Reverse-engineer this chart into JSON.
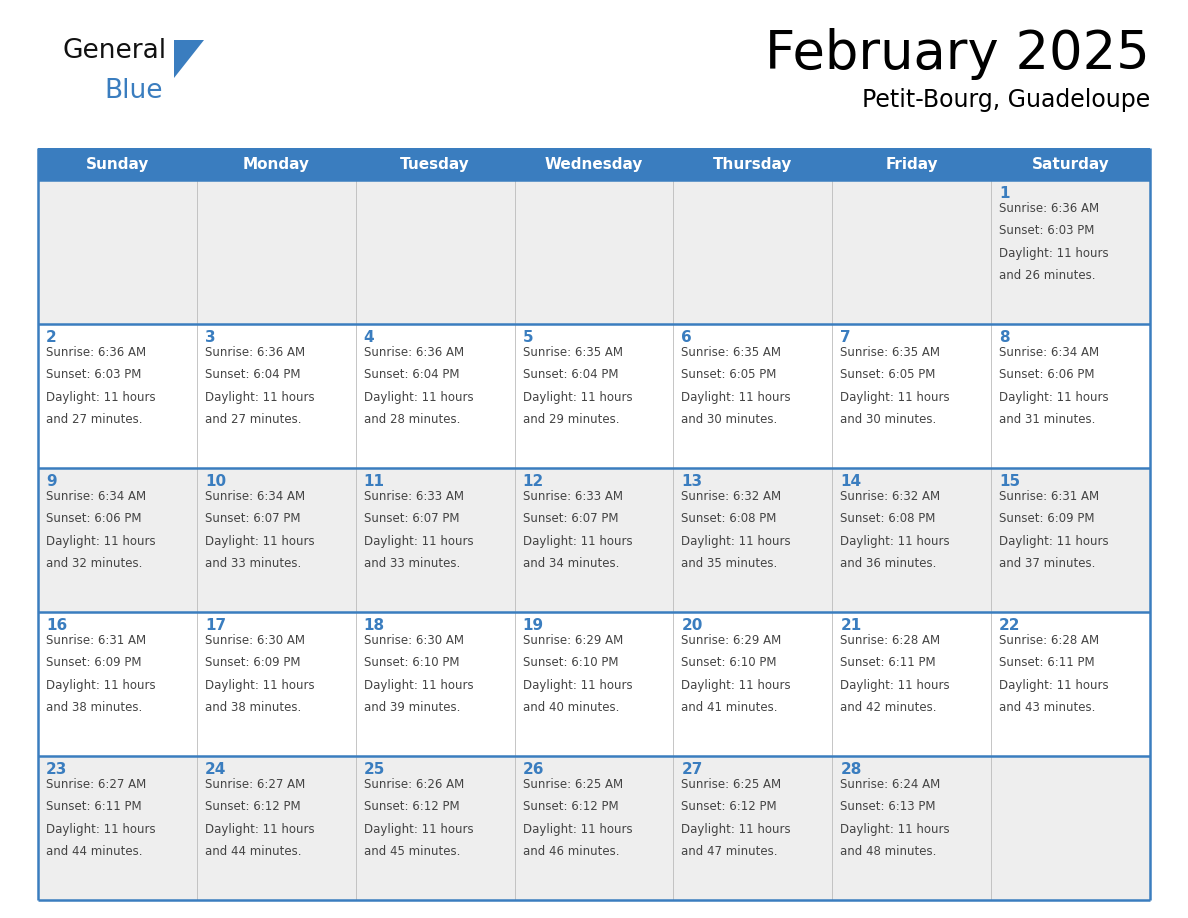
{
  "title": "February 2025",
  "subtitle": "Petit-Bourg, Guadeloupe",
  "days_of_week": [
    "Sunday",
    "Monday",
    "Tuesday",
    "Wednesday",
    "Thursday",
    "Friday",
    "Saturday"
  ],
  "header_bg": "#3a7dbf",
  "header_text": "#ffffff",
  "row_bg_odd": "#eeeeee",
  "row_bg_even": "#ffffff",
  "date_color": "#3a7dbf",
  "info_color": "#444444",
  "line_color": "#3a7dbf",
  "logo_general_color": "#111111",
  "logo_blue_color": "#3a7dbf",
  "calendar_data": [
    [
      {
        "date": "",
        "sunrise": "",
        "sunset": "",
        "daylight": ""
      },
      {
        "date": "",
        "sunrise": "",
        "sunset": "",
        "daylight": ""
      },
      {
        "date": "",
        "sunrise": "",
        "sunset": "",
        "daylight": ""
      },
      {
        "date": "",
        "sunrise": "",
        "sunset": "",
        "daylight": ""
      },
      {
        "date": "",
        "sunrise": "",
        "sunset": "",
        "daylight": ""
      },
      {
        "date": "",
        "sunrise": "",
        "sunset": "",
        "daylight": ""
      },
      {
        "date": "1",
        "sunrise": "6:36 AM",
        "sunset": "6:03 PM",
        "daylight": "11 hours and 26 minutes."
      }
    ],
    [
      {
        "date": "2",
        "sunrise": "6:36 AM",
        "sunset": "6:03 PM",
        "daylight": "11 hours and 27 minutes."
      },
      {
        "date": "3",
        "sunrise": "6:36 AM",
        "sunset": "6:04 PM",
        "daylight": "11 hours and 27 minutes."
      },
      {
        "date": "4",
        "sunrise": "6:36 AM",
        "sunset": "6:04 PM",
        "daylight": "11 hours and 28 minutes."
      },
      {
        "date": "5",
        "sunrise": "6:35 AM",
        "sunset": "6:04 PM",
        "daylight": "11 hours and 29 minutes."
      },
      {
        "date": "6",
        "sunrise": "6:35 AM",
        "sunset": "6:05 PM",
        "daylight": "11 hours and 30 minutes."
      },
      {
        "date": "7",
        "sunrise": "6:35 AM",
        "sunset": "6:05 PM",
        "daylight": "11 hours and 30 minutes."
      },
      {
        "date": "8",
        "sunrise": "6:34 AM",
        "sunset": "6:06 PM",
        "daylight": "11 hours and 31 minutes."
      }
    ],
    [
      {
        "date": "9",
        "sunrise": "6:34 AM",
        "sunset": "6:06 PM",
        "daylight": "11 hours and 32 minutes."
      },
      {
        "date": "10",
        "sunrise": "6:34 AM",
        "sunset": "6:07 PM",
        "daylight": "11 hours and 33 minutes."
      },
      {
        "date": "11",
        "sunrise": "6:33 AM",
        "sunset": "6:07 PM",
        "daylight": "11 hours and 33 minutes."
      },
      {
        "date": "12",
        "sunrise": "6:33 AM",
        "sunset": "6:07 PM",
        "daylight": "11 hours and 34 minutes."
      },
      {
        "date": "13",
        "sunrise": "6:32 AM",
        "sunset": "6:08 PM",
        "daylight": "11 hours and 35 minutes."
      },
      {
        "date": "14",
        "sunrise": "6:32 AM",
        "sunset": "6:08 PM",
        "daylight": "11 hours and 36 minutes."
      },
      {
        "date": "15",
        "sunrise": "6:31 AM",
        "sunset": "6:09 PM",
        "daylight": "11 hours and 37 minutes."
      }
    ],
    [
      {
        "date": "16",
        "sunrise": "6:31 AM",
        "sunset": "6:09 PM",
        "daylight": "11 hours and 38 minutes."
      },
      {
        "date": "17",
        "sunrise": "6:30 AM",
        "sunset": "6:09 PM",
        "daylight": "11 hours and 38 minutes."
      },
      {
        "date": "18",
        "sunrise": "6:30 AM",
        "sunset": "6:10 PM",
        "daylight": "11 hours and 39 minutes."
      },
      {
        "date": "19",
        "sunrise": "6:29 AM",
        "sunset": "6:10 PM",
        "daylight": "11 hours and 40 minutes."
      },
      {
        "date": "20",
        "sunrise": "6:29 AM",
        "sunset": "6:10 PM",
        "daylight": "11 hours and 41 minutes."
      },
      {
        "date": "21",
        "sunrise": "6:28 AM",
        "sunset": "6:11 PM",
        "daylight": "11 hours and 42 minutes."
      },
      {
        "date": "22",
        "sunrise": "6:28 AM",
        "sunset": "6:11 PM",
        "daylight": "11 hours and 43 minutes."
      }
    ],
    [
      {
        "date": "23",
        "sunrise": "6:27 AM",
        "sunset": "6:11 PM",
        "daylight": "11 hours and 44 minutes."
      },
      {
        "date": "24",
        "sunrise": "6:27 AM",
        "sunset": "6:12 PM",
        "daylight": "11 hours and 44 minutes."
      },
      {
        "date": "25",
        "sunrise": "6:26 AM",
        "sunset": "6:12 PM",
        "daylight": "11 hours and 45 minutes."
      },
      {
        "date": "26",
        "sunrise": "6:25 AM",
        "sunset": "6:12 PM",
        "daylight": "11 hours and 46 minutes."
      },
      {
        "date": "27",
        "sunrise": "6:25 AM",
        "sunset": "6:12 PM",
        "daylight": "11 hours and 47 minutes."
      },
      {
        "date": "28",
        "sunrise": "6:24 AM",
        "sunset": "6:13 PM",
        "daylight": "11 hours and 48 minutes."
      },
      {
        "date": "",
        "sunrise": "",
        "sunset": "",
        "daylight": ""
      }
    ]
  ]
}
